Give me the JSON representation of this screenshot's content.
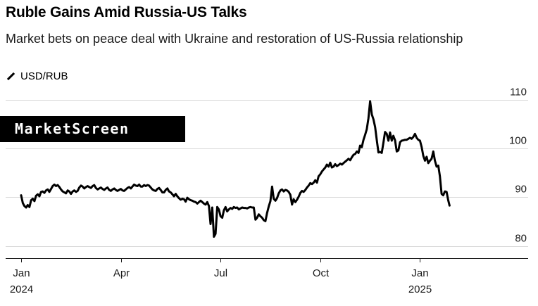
{
  "header": {
    "title": "Ruble Gains Amid Russia-US Talks",
    "subtitle": "Market bets on peace deal with Ukraine and restoration of US-Russia relationship"
  },
  "legend": {
    "label": "USD/RUB",
    "icon": "diagonal-line-icon"
  },
  "watermark": {
    "text": "MarketScreen"
  },
  "chart_data": {
    "type": "line",
    "title": "Ruble Gains Amid Russia-US Talks",
    "subtitle": "Market bets on peace deal with Ukraine and restoration of US-Russia relationship",
    "xlabel": "",
    "ylabel": "",
    "ylim": [
      77.5,
      112
    ],
    "y_ticks": [
      110,
      100,
      90,
      80
    ],
    "x_ticks": [
      {
        "label": "Jan",
        "year": "2024",
        "month_index": 0
      },
      {
        "label": "Apr",
        "year": "",
        "month_index": 3
      },
      {
        "label": "Jul",
        "year": "",
        "month_index": 6
      },
      {
        "label": "Oct",
        "year": "",
        "month_index": 9
      },
      {
        "label": "Jan",
        "year": "2025",
        "month_index": 12
      }
    ],
    "grid": true,
    "legend_position": "top-left",
    "series": [
      {
        "name": "USD/RUB",
        "color": "#000000",
        "points": [
          [
            0.0,
            90.4
          ],
          [
            0.05,
            88.8
          ],
          [
            0.1,
            88.2
          ],
          [
            0.15,
            87.9
          ],
          [
            0.2,
            88.4
          ],
          [
            0.25,
            88.0
          ],
          [
            0.3,
            89.4
          ],
          [
            0.35,
            89.7
          ],
          [
            0.4,
            89.2
          ],
          [
            0.45,
            90.3
          ],
          [
            0.5,
            90.6
          ],
          [
            0.55,
            90.2
          ],
          [
            0.6,
            91.1
          ],
          [
            0.65,
            91.2
          ],
          [
            0.7,
            90.9
          ],
          [
            0.75,
            91.4
          ],
          [
            0.8,
            91.6
          ],
          [
            0.85,
            91.1
          ],
          [
            0.9,
            91.7
          ],
          [
            0.95,
            92.3
          ],
          [
            1.0,
            92.6
          ],
          [
            1.05,
            92.3
          ],
          [
            1.1,
            92.5
          ],
          [
            1.15,
            92.1
          ],
          [
            1.2,
            91.6
          ],
          [
            1.25,
            91.2
          ],
          [
            1.3,
            91.0
          ],
          [
            1.35,
            90.8
          ],
          [
            1.4,
            91.4
          ],
          [
            1.45,
            91.2
          ],
          [
            1.5,
            90.7
          ],
          [
            1.55,
            91.2
          ],
          [
            1.6,
            91.4
          ],
          [
            1.65,
            91.1
          ],
          [
            1.7,
            91.3
          ],
          [
            1.75,
            92.0
          ],
          [
            1.8,
            92.4
          ],
          [
            1.85,
            92.2
          ],
          [
            1.9,
            91.8
          ],
          [
            1.95,
            92.1
          ],
          [
            2.0,
            92.3
          ],
          [
            2.05,
            92.1
          ],
          [
            2.1,
            91.9
          ],
          [
            2.15,
            92.3
          ],
          [
            2.2,
            92.5
          ],
          [
            2.25,
            91.9
          ],
          [
            2.3,
            91.6
          ],
          [
            2.35,
            91.8
          ],
          [
            2.4,
            92.0
          ],
          [
            2.45,
            91.7
          ],
          [
            2.5,
            91.5
          ],
          [
            2.55,
            91.8
          ],
          [
            2.6,
            92.0
          ],
          [
            2.65,
            91.5
          ],
          [
            2.7,
            91.3
          ],
          [
            2.75,
            91.6
          ],
          [
            2.8,
            91.8
          ],
          [
            2.85,
            91.5
          ],
          [
            2.9,
            91.3
          ],
          [
            2.95,
            91.5
          ],
          [
            3.0,
            91.7
          ],
          [
            3.05,
            91.4
          ],
          [
            3.1,
            91.3
          ],
          [
            3.15,
            91.6
          ],
          [
            3.2,
            91.9
          ],
          [
            3.25,
            92.1
          ],
          [
            3.3,
            91.8
          ],
          [
            3.35,
            92.2
          ],
          [
            3.4,
            92.6
          ],
          [
            3.45,
            92.4
          ],
          [
            3.5,
            92.3
          ],
          [
            3.55,
            92.6
          ],
          [
            3.6,
            92.2
          ],
          [
            3.65,
            92.2
          ],
          [
            3.7,
            92.5
          ],
          [
            3.75,
            92.3
          ],
          [
            3.8,
            92.5
          ],
          [
            3.85,
            92.4
          ],
          [
            3.9,
            92.0
          ],
          [
            3.95,
            91.6
          ],
          [
            4.0,
            91.4
          ],
          [
            4.05,
            91.3
          ],
          [
            4.1,
            91.7
          ],
          [
            4.15,
            91.9
          ],
          [
            4.2,
            91.5
          ],
          [
            4.25,
            91.0
          ],
          [
            4.3,
            91.0
          ],
          [
            4.35,
            91.5
          ],
          [
            4.4,
            91.8
          ],
          [
            4.45,
            91.2
          ],
          [
            4.5,
            91.0
          ],
          [
            4.55,
            90.6
          ],
          [
            4.6,
            90.2
          ],
          [
            4.65,
            90.7
          ],
          [
            4.7,
            90.2
          ],
          [
            4.75,
            89.8
          ],
          [
            4.8,
            89.5
          ],
          [
            4.85,
            89.7
          ],
          [
            4.9,
            89.6
          ],
          [
            4.95,
            89.1
          ],
          [
            5.0,
            89.9
          ],
          [
            5.05,
            89.6
          ],
          [
            5.1,
            89.4
          ],
          [
            5.15,
            89.3
          ],
          [
            5.2,
            89.1
          ],
          [
            5.25,
            89.0
          ],
          [
            5.3,
            88.7
          ],
          [
            5.35,
            89.0
          ],
          [
            5.4,
            89.3
          ],
          [
            5.45,
            89.0
          ],
          [
            5.5,
            88.7
          ],
          [
            5.55,
            88.5
          ],
          [
            5.6,
            89.0
          ],
          [
            5.65,
            88.2
          ],
          [
            5.7,
            84.5
          ],
          [
            5.75,
            87.9
          ],
          [
            5.8,
            81.9
          ],
          [
            5.85,
            82.5
          ],
          [
            5.9,
            88.0
          ],
          [
            5.95,
            87.5
          ],
          [
            6.0,
            86.1
          ],
          [
            6.05,
            85.8
          ],
          [
            6.1,
            87.3
          ],
          [
            6.15,
            88.0
          ],
          [
            6.2,
            87.1
          ],
          [
            6.25,
            87.5
          ],
          [
            6.3,
            87.8
          ],
          [
            6.35,
            87.6
          ],
          [
            6.4,
            88.0
          ],
          [
            6.45,
            87.8
          ],
          [
            6.5,
            87.9
          ],
          [
            6.55,
            87.5
          ],
          [
            6.6,
            87.7
          ],
          [
            6.65,
            87.9
          ],
          [
            6.7,
            87.8
          ],
          [
            6.75,
            87.8
          ],
          [
            6.8,
            87.7
          ],
          [
            6.85,
            87.9
          ],
          [
            6.9,
            88.0
          ],
          [
            6.95,
            87.9
          ],
          [
            7.0,
            87.9
          ],
          [
            7.05,
            85.4
          ],
          [
            7.1,
            85.8
          ],
          [
            7.15,
            86.5
          ],
          [
            7.2,
            86.1
          ],
          [
            7.25,
            85.8
          ],
          [
            7.3,
            85.3
          ],
          [
            7.35,
            85.1
          ],
          [
            7.4,
            86.8
          ],
          [
            7.45,
            88.1
          ],
          [
            7.5,
            89.2
          ],
          [
            7.55,
            92.2
          ],
          [
            7.6,
            89.7
          ],
          [
            7.65,
            89.3
          ],
          [
            7.7,
            89.8
          ],
          [
            7.75,
            90.8
          ],
          [
            7.8,
            91.4
          ],
          [
            7.85,
            91.6
          ],
          [
            7.9,
            91.2
          ],
          [
            7.95,
            91.5
          ],
          [
            8.0,
            91.4
          ],
          [
            8.05,
            91.1
          ],
          [
            8.1,
            90.5
          ],
          [
            8.15,
            88.5
          ],
          [
            8.2,
            89.6
          ],
          [
            8.25,
            89.0
          ],
          [
            8.3,
            89.5
          ],
          [
            8.35,
            90.1
          ],
          [
            8.4,
            90.9
          ],
          [
            8.45,
            91.3
          ],
          [
            8.5,
            91.1
          ],
          [
            8.55,
            91.5
          ],
          [
            8.6,
            92.0
          ],
          [
            8.65,
            92.4
          ],
          [
            8.7,
            92.9
          ],
          [
            8.75,
            92.7
          ],
          [
            8.8,
            93.0
          ],
          [
            8.85,
            93.5
          ],
          [
            8.9,
            93.0
          ],
          [
            8.95,
            94.3
          ],
          [
            9.0,
            94.7
          ],
          [
            9.05,
            95.3
          ],
          [
            9.1,
            95.7
          ],
          [
            9.15,
            96.1
          ],
          [
            9.2,
            96.7
          ],
          [
            9.25,
            96.3
          ],
          [
            9.3,
            97.1
          ],
          [
            9.35,
            96.1
          ],
          [
            9.4,
            96.3
          ],
          [
            9.45,
            96.8
          ],
          [
            9.5,
            96.4
          ],
          [
            9.55,
            96.6
          ],
          [
            9.6,
            96.9
          ],
          [
            9.65,
            96.7
          ],
          [
            9.7,
            97.0
          ],
          [
            9.75,
            97.3
          ],
          [
            9.8,
            97.6
          ],
          [
            9.85,
            97.9
          ],
          [
            9.9,
            97.6
          ],
          [
            9.95,
            98.2
          ],
          [
            10.0,
            98.7
          ],
          [
            10.05,
            98.9
          ],
          [
            10.1,
            99.4
          ],
          [
            10.15,
            99.1
          ],
          [
            10.2,
            100.6
          ],
          [
            10.25,
            100.3
          ],
          [
            10.3,
            101.8
          ],
          [
            10.35,
            102.8
          ],
          [
            10.4,
            104.0
          ],
          [
            10.45,
            106.2
          ],
          [
            10.5,
            109.7
          ],
          [
            10.55,
            107.0
          ],
          [
            10.6,
            106.0
          ],
          [
            10.65,
            104.4
          ],
          [
            10.7,
            101.8
          ],
          [
            10.75,
            99.2
          ],
          [
            10.8,
            99.3
          ],
          [
            10.85,
            99.1
          ],
          [
            10.9,
            101.2
          ],
          [
            10.95,
            103.4
          ],
          [
            11.0,
            103.0
          ],
          [
            11.05,
            101.6
          ],
          [
            11.1,
            103.3
          ],
          [
            11.15,
            101.6
          ],
          [
            11.2,
            102.6
          ],
          [
            11.25,
            101.7
          ],
          [
            11.3,
            99.4
          ],
          [
            11.35,
            99.6
          ],
          [
            11.4,
            101.3
          ],
          [
            11.45,
            101.6
          ],
          [
            11.5,
            101.7
          ],
          [
            11.55,
            101.8
          ],
          [
            11.6,
            101.8
          ],
          [
            11.65,
            102.0
          ],
          [
            11.7,
            102.2
          ],
          [
            11.75,
            102.0
          ],
          [
            11.8,
            102.4
          ],
          [
            11.85,
            103.0
          ],
          [
            11.9,
            102.2
          ],
          [
            11.95,
            101.8
          ],
          [
            12.0,
            101.6
          ],
          [
            12.05,
            100.3
          ],
          [
            12.1,
            98.5
          ],
          [
            12.15,
            97.5
          ],
          [
            12.2,
            98.3
          ],
          [
            12.25,
            97.0
          ],
          [
            12.3,
            97.5
          ],
          [
            12.35,
            97.9
          ],
          [
            12.4,
            99.4
          ],
          [
            12.45,
            97.5
          ],
          [
            12.5,
            96.3
          ],
          [
            12.55,
            96.5
          ],
          [
            12.6,
            94.3
          ],
          [
            12.65,
            90.7
          ],
          [
            12.7,
            90.4
          ],
          [
            12.75,
            91.2
          ],
          [
            12.8,
            91.1
          ],
          [
            12.85,
            89.4
          ],
          [
            12.89,
            88.3
          ]
        ]
      }
    ]
  }
}
